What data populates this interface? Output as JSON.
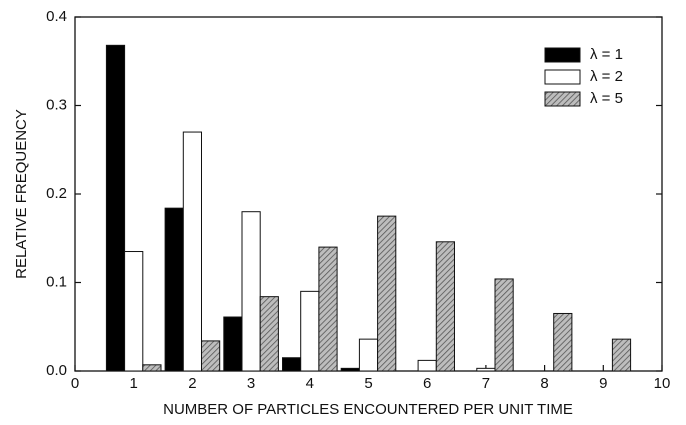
{
  "chart_data": {
    "type": "bar",
    "x_label": "NUMBER OF PARTICLES ENCOUNTERED PER UNIT TIME",
    "y_label": "RELATIVE FREQUENCY",
    "x": [
      1,
      2,
      3,
      4,
      5,
      6,
      7,
      8,
      9
    ],
    "series": [
      {
        "name": "λ = 1",
        "color": "#000000",
        "values": [
          0.368,
          0.184,
          0.061,
          0.015,
          0.003,
          0,
          0,
          0,
          0
        ]
      },
      {
        "name": "λ = 2",
        "color": "#ffffff",
        "values": [
          0.135,
          0.27,
          0.18,
          0.09,
          0.036,
          0.012,
          0.003,
          0,
          0
        ]
      },
      {
        "name": "λ = 5",
        "color": "#8a8a8a",
        "pattern": "hatch",
        "values": [
          0.007,
          0.034,
          0.084,
          0.14,
          0.175,
          0.146,
          0.104,
          0.065,
          0.036
        ]
      }
    ],
    "xlim": [
      0,
      10
    ],
    "xticks": [
      0,
      1,
      2,
      3,
      4,
      5,
      6,
      7,
      8,
      9,
      10
    ],
    "ylim": [
      0,
      0.4
    ],
    "yticks": [
      {
        "value": 0,
        "label": "0.0"
      },
      0.1,
      0.2,
      0.3,
      0.4
    ],
    "grid": false,
    "legend": "upper-right"
  }
}
